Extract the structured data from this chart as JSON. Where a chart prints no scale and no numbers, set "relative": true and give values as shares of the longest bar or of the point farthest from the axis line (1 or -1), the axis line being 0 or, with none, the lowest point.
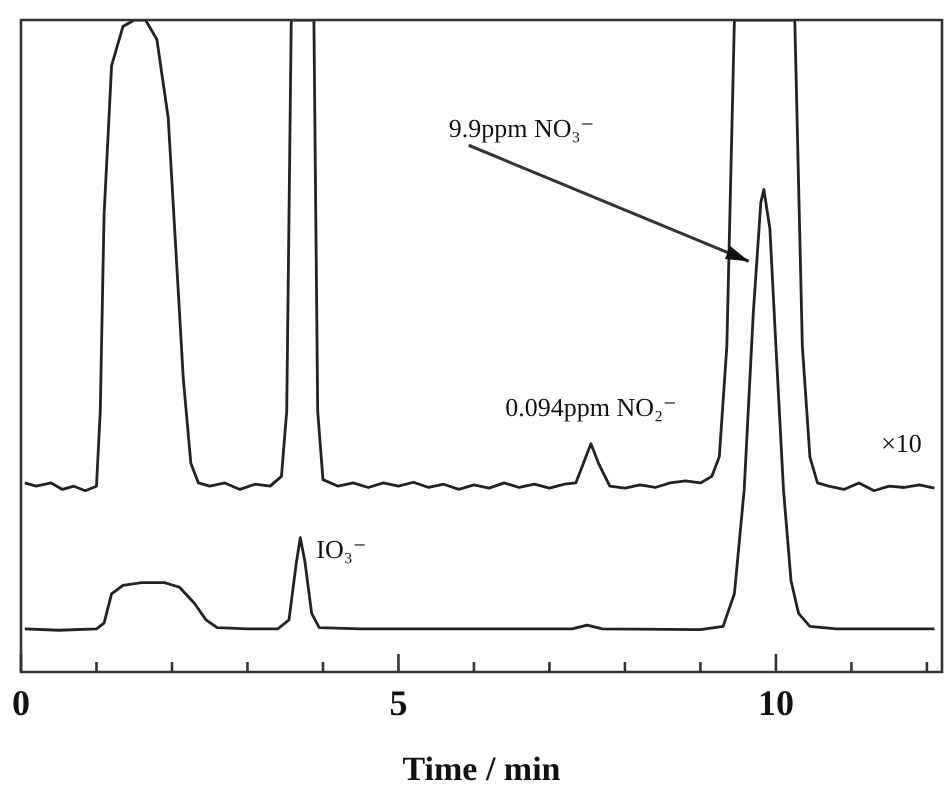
{
  "chart_data": {
    "type": "line",
    "xlabel": "Time / min",
    "relative": true,
    "marker": "none",
    "line_style": "solid",
    "grid": false,
    "legend": false,
    "xlim": [
      0,
      12.2
    ],
    "xticks": [
      0,
      {
        "value": 1,
        "label": null
      },
      {
        "value": 2,
        "label": null
      },
      {
        "value": 3,
        "label": null
      },
      {
        "value": 4,
        "label": null
      },
      5,
      {
        "value": 6,
        "label": null
      },
      {
        "value": 7,
        "label": null
      },
      {
        "value": 8,
        "label": null
      },
      {
        "value": 9,
        "label": null
      },
      10,
      {
        "value": 11,
        "label": null
      },
      {
        "value": 12,
        "label": null
      }
    ],
    "series": [
      {
        "color": "#222222",
        "x": [
          0.05,
          0.2,
          0.4,
          0.55,
          0.7,
          0.85,
          1.0,
          1.05,
          1.1,
          1.2,
          1.35,
          1.5,
          1.65,
          1.8,
          1.95,
          2.05,
          2.15,
          2.25,
          2.35,
          2.5,
          2.7,
          2.9,
          3.1,
          3.3,
          3.45,
          3.52,
          3.58,
          3.88,
          3.93,
          4.0,
          4.2,
          4.4,
          4.6,
          4.8,
          5.0,
          5.2,
          5.4,
          5.6,
          5.8,
          6.0,
          6.2,
          6.4,
          6.6,
          6.8,
          7.0,
          7.2,
          7.35,
          7.45,
          7.55,
          7.65,
          7.8,
          8.0,
          8.2,
          8.4,
          8.6,
          8.8,
          9.0,
          9.15,
          9.25,
          9.35,
          9.45,
          10.25,
          10.35,
          10.45,
          10.55,
          10.7,
          10.9,
          11.1,
          11.3,
          11.5,
          11.7,
          11.9,
          12.1
        ],
        "values": [
          0.29,
          0.285,
          0.29,
          0.28,
          0.285,
          0.278,
          0.285,
          0.4,
          0.7,
          0.93,
          0.99,
          1,
          1,
          0.97,
          0.85,
          0.65,
          0.45,
          0.32,
          0.29,
          0.285,
          0.29,
          0.28,
          0.288,
          0.285,
          0.3,
          0.4,
          1,
          1,
          0.4,
          0.295,
          0.285,
          0.29,
          0.283,
          0.29,
          0.285,
          0.291,
          0.283,
          0.288,
          0.28,
          0.287,
          0.282,
          0.29,
          0.283,
          0.288,
          0.282,
          0.288,
          0.29,
          0.32,
          0.35,
          0.32,
          0.285,
          0.282,
          0.287,
          0.283,
          0.29,
          0.293,
          0.29,
          0.3,
          0.33,
          0.5,
          1,
          1,
          0.5,
          0.33,
          0.29,
          0.285,
          0.28,
          0.29,
          0.278,
          0.285,
          0.283,
          0.287,
          0.282
        ]
      },
      {
        "color": "#222222",
        "x": [
          0.05,
          0.5,
          1.0,
          1.1,
          1.2,
          1.35,
          1.6,
          1.9,
          2.1,
          2.3,
          2.45,
          2.6,
          3.0,
          3.4,
          3.55,
          3.65,
          3.7,
          3.76,
          3.85,
          3.95,
          4.5,
          6.0,
          7.3,
          7.5,
          7.7,
          9.0,
          9.3,
          9.45,
          9.58,
          9.7,
          9.8,
          9.84,
          9.92,
          10.0,
          10.1,
          10.2,
          10.3,
          10.45,
          10.8,
          12.1
        ],
        "values": [
          0.066,
          0.064,
          0.066,
          0.075,
          0.12,
          0.133,
          0.137,
          0.137,
          0.13,
          0.105,
          0.08,
          0.068,
          0.066,
          0.066,
          0.08,
          0.17,
          0.206,
          0.17,
          0.09,
          0.068,
          0.066,
          0.066,
          0.066,
          0.072,
          0.066,
          0.065,
          0.07,
          0.12,
          0.28,
          0.55,
          0.72,
          0.74,
          0.68,
          0.5,
          0.28,
          0.14,
          0.09,
          0.07,
          0.066,
          0.066
        ]
      }
    ],
    "annotations": [
      {
        "text": "9.9ppm NO₃⁻",
        "x": 9.64,
        "y": 0.63
      },
      {
        "text": "0.094ppm NO₂⁻",
        "x": 7.55,
        "y": 0.35
      },
      {
        "text": "IO₃⁻",
        "x": 3.7,
        "y": 0.206
      },
      {
        "text": "×10",
        "x": 11.5,
        "y": 0.3
      }
    ]
  }
}
